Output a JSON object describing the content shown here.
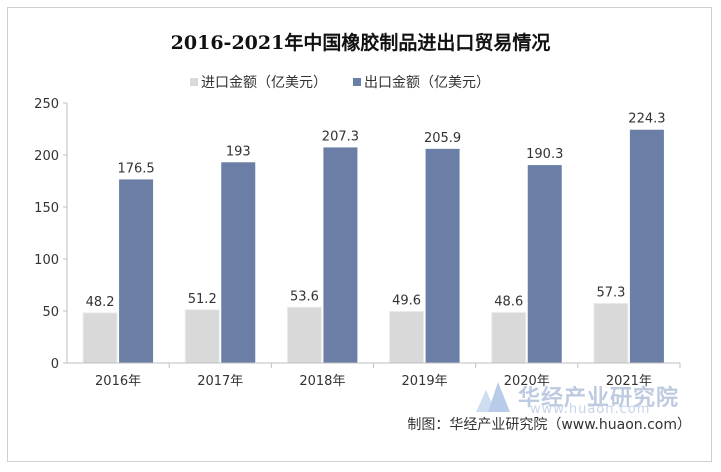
{
  "chart_data": {
    "type": "bar",
    "title": "2016-2021年中国橡胶制品进出口贸易情况",
    "categories": [
      "2016年",
      "2017年",
      "2018年",
      "2019年",
      "2020年",
      "2021年"
    ],
    "series": [
      {
        "name": "进口金额（亿美元）",
        "color": "#d9d9d9",
        "values": [
          48.2,
          51.2,
          53.6,
          49.6,
          48.6,
          57.3
        ],
        "labels": [
          "48.2",
          "51.2",
          "53.6",
          "49.6",
          "48.6",
          "57.3"
        ]
      },
      {
        "name": "出口金额（亿美元）",
        "color": "#6a7ea6",
        "values": [
          176.5,
          193,
          207.3,
          205.9,
          190.3,
          224.3
        ],
        "labels": [
          "176.5",
          "193",
          "207.3",
          "205.9",
          "190.3",
          "224.3"
        ]
      }
    ],
    "ylim": [
      0,
      250
    ],
    "yticks": [
      "0",
      "50",
      "100",
      "150",
      "200",
      "250"
    ],
    "xlabel": "",
    "ylabel": "",
    "legend": "top"
  },
  "source": "制图：华经产业研究院（www.huaon.com）",
  "watermark": {
    "cn": "华经产业研究院",
    "en": "www.huaon.com"
  }
}
